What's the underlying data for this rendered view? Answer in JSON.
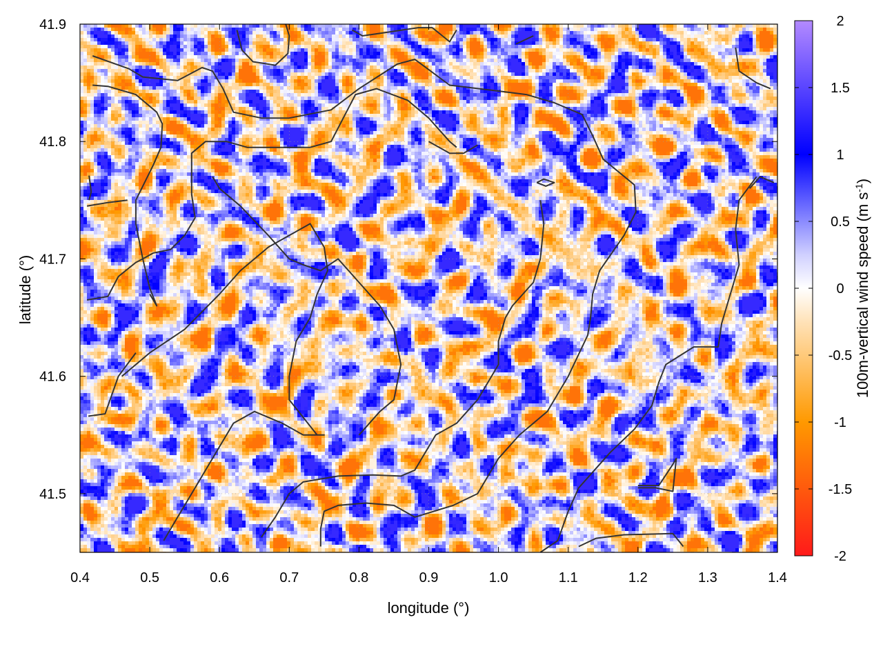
{
  "chart_data": {
    "type": "heatmap",
    "title": "",
    "xlabel": "longitude (°)",
    "ylabel": "latitude (°)",
    "colorbar_label": "100m-vertical wind speed (m s",
    "colorbar_label_sup": "-1",
    "colorbar_label_end": ")",
    "xlim": [
      0.4,
      1.4
    ],
    "ylim": [
      41.45,
      41.9
    ],
    "clim": [
      -2,
      2
    ],
    "x_ticks": [
      0.4,
      0.5,
      0.6,
      0.7,
      0.8,
      0.9,
      1.0,
      1.1,
      1.2,
      1.3,
      1.4
    ],
    "x_tick_labels": [
      "0.4",
      "0.5",
      "0.6",
      "0.7",
      "0.8",
      "0.9",
      "1.0",
      "1.1",
      "1.2",
      "1.3",
      "1.4"
    ],
    "y_ticks": [
      41.5,
      41.6,
      41.7,
      41.8,
      41.9
    ],
    "y_tick_labels": [
      "41.5",
      "41.6",
      "41.7",
      "41.8",
      "41.9"
    ],
    "colorbar_ticks": [
      2,
      1.5,
      1,
      0.5,
      0,
      -0.5,
      -1,
      -1.5,
      -2
    ],
    "colorbar_tick_labels": [
      "2",
      "1.5",
      "1",
      "0.5",
      "0",
      "-0.5",
      "-1",
      "-1.5",
      "-2"
    ],
    "colormap": [
      {
        "value": -2.0,
        "color": "#ff1a1a"
      },
      {
        "value": -1.0,
        "color": "#ff9900"
      },
      {
        "value": -0.25,
        "color": "#ffe2b8"
      },
      {
        "value": 0.0,
        "color": "#ffffff"
      },
      {
        "value": 0.25,
        "color": "#d0d0ff"
      },
      {
        "value": 1.0,
        "color": "#0000ff"
      },
      {
        "value": 2.0,
        "color": "#b38aff"
      }
    ],
    "grid": true,
    "contour_color": "#333333",
    "contours": [
      [
        [
          0.418,
          41.873
        ],
        [
          0.47,
          41.862
        ],
        [
          0.49,
          41.855
        ],
        [
          0.54,
          41.852
        ],
        [
          0.575,
          41.863
        ],
        [
          0.59,
          41.86
        ],
        [
          0.605,
          41.845
        ],
        [
          0.62,
          41.825
        ],
        [
          0.66,
          41.82
        ],
        [
          0.7,
          41.82
        ],
        [
          0.76,
          41.827
        ],
        [
          0.8,
          41.845
        ],
        [
          0.855,
          41.866
        ],
        [
          0.88,
          41.87
        ],
        [
          0.93,
          41.848
        ],
        [
          1.0,
          41.843
        ],
        [
          1.04,
          41.84
        ],
        [
          1.08,
          41.833
        ],
        [
          1.12,
          41.823
        ],
        [
          1.135,
          41.805
        ],
        [
          1.15,
          41.785
        ],
        [
          1.195,
          41.763
        ],
        [
          1.197,
          41.74
        ],
        [
          1.18,
          41.72
        ],
        [
          1.145,
          41.69
        ],
        [
          1.135,
          41.67
        ],
        [
          1.132,
          41.65
        ],
        [
          1.128,
          41.635
        ],
        [
          1.1,
          41.6
        ],
        [
          1.07,
          41.57
        ],
        [
          1.03,
          41.55
        ],
        [
          1.0,
          41.53
        ],
        [
          0.985,
          41.515
        ],
        [
          0.97,
          41.5
        ],
        [
          0.935,
          41.49
        ],
        [
          0.88,
          41.48
        ],
        [
          0.85,
          41.49
        ],
        [
          0.81,
          41.492
        ],
        [
          0.77,
          41.49
        ],
        [
          0.75,
          41.485
        ],
        [
          0.745,
          41.47
        ],
        [
          0.745,
          41.455
        ]
      ],
      [
        [
          0.418,
          41.848
        ],
        [
          0.44,
          41.847
        ],
        [
          0.48,
          41.84
        ],
        [
          0.51,
          41.825
        ],
        [
          0.518,
          41.815
        ],
        [
          0.516,
          41.795
        ],
        [
          0.505,
          41.78
        ],
        [
          0.48,
          41.75
        ],
        [
          0.48,
          41.73
        ],
        [
          0.49,
          41.7
        ],
        [
          0.5,
          41.675
        ],
        [
          0.51,
          41.66
        ],
        [
          0.5,
          41.67
        ]
      ],
      [
        [
          0.413,
          41.771
        ],
        [
          0.416,
          41.757
        ],
        [
          0.413,
          41.75
        ]
      ],
      [
        [
          0.625,
          41.895
        ],
        [
          0.632,
          41.878
        ],
        [
          0.648,
          41.868
        ],
        [
          0.68,
          41.865
        ],
        [
          0.698,
          41.875
        ],
        [
          0.7,
          41.89
        ],
        [
          0.695,
          41.9
        ]
      ],
      [
        [
          0.79,
          41.895
        ],
        [
          0.805,
          41.89
        ],
        [
          0.84,
          41.893
        ],
        [
          0.885,
          41.897
        ],
        [
          0.905,
          41.897
        ],
        [
          0.93,
          41.885
        ],
        [
          0.94,
          41.895
        ]
      ],
      [
        [
          1.025,
          41.883
        ],
        [
          1.05,
          41.89
        ]
      ],
      [
        [
          1.34,
          41.88
        ],
        [
          1.345,
          41.86
        ],
        [
          1.37,
          41.85
        ],
        [
          1.39,
          41.845
        ]
      ],
      [
        [
          1.36,
          41.76
        ],
        [
          1.375,
          41.77
        ],
        [
          1.395,
          41.765
        ]
      ],
      [
        [
          1.37,
          41.77
        ],
        [
          1.345,
          41.75
        ],
        [
          1.34,
          41.725
        ],
        [
          1.345,
          41.695
        ],
        [
          1.33,
          41.665
        ],
        [
          1.32,
          41.645
        ],
        [
          1.315,
          41.625
        ],
        [
          1.28,
          41.625
        ],
        [
          1.24,
          41.61
        ],
        [
          1.23,
          41.595
        ],
        [
          1.22,
          41.575
        ],
        [
          1.195,
          41.555
        ],
        [
          1.16,
          41.535
        ],
        [
          1.115,
          41.505
        ],
        [
          1.1,
          41.485
        ],
        [
          1.085,
          41.46
        ],
        [
          1.06,
          41.45
        ]
      ],
      [
        [
          0.41,
          41.665
        ],
        [
          0.44,
          41.668
        ],
        [
          0.455,
          41.685
        ],
        [
          0.48,
          41.697
        ],
        [
          0.49,
          41.7
        ],
        [
          0.505,
          41.705
        ],
        [
          0.53,
          41.708
        ],
        [
          0.55,
          41.72
        ],
        [
          0.565,
          41.735
        ],
        [
          0.56,
          41.755
        ],
        [
          0.56,
          41.79
        ],
        [
          0.58,
          41.8
        ],
        [
          0.61,
          41.8
        ],
        [
          0.64,
          41.795
        ],
        [
          0.68,
          41.795
        ],
        [
          0.73,
          41.795
        ],
        [
          0.76,
          41.8
        ],
        [
          0.795,
          41.84
        ],
        [
          0.825,
          41.845
        ],
        [
          0.87,
          41.835
        ],
        [
          0.9,
          41.82
        ],
        [
          0.93,
          41.8
        ],
        [
          0.94,
          41.795
        ]
      ],
      [
        [
          0.41,
          41.745
        ],
        [
          0.44,
          41.748
        ],
        [
          0.468,
          41.75
        ]
      ],
      [
        [
          0.59,
          41.77
        ],
        [
          0.6,
          41.76
        ],
        [
          0.63,
          41.745
        ],
        [
          0.67,
          41.72
        ],
        [
          0.7,
          41.7
        ],
        [
          0.72,
          41.695
        ],
        [
          0.745,
          41.69
        ],
        [
          0.77,
          41.7
        ],
        [
          0.8,
          41.68
        ],
        [
          0.83,
          41.66
        ],
        [
          0.85,
          41.64
        ],
        [
          0.86,
          41.61
        ],
        [
          0.85,
          41.58
        ],
        [
          0.83,
          41.57
        ],
        [
          0.8,
          41.55
        ]
      ],
      [
        [
          0.46,
          41.6
        ],
        [
          0.5,
          41.62
        ],
        [
          0.55,
          41.64
        ],
        [
          0.6,
          41.67
        ],
        [
          0.63,
          41.69
        ],
        [
          0.67,
          41.71
        ],
        [
          0.7,
          41.72
        ],
        [
          0.73,
          41.73
        ],
        [
          0.75,
          41.71
        ],
        [
          0.755,
          41.69
        ],
        [
          0.74,
          41.67
        ],
        [
          0.73,
          41.65
        ],
        [
          0.71,
          41.63
        ],
        [
          0.7,
          41.6
        ],
        [
          0.7,
          41.58
        ],
        [
          0.74,
          41.55
        ],
        [
          0.75,
          41.55
        ],
        [
          0.72,
          41.55
        ],
        [
          0.69,
          41.56
        ],
        [
          0.65,
          41.57
        ],
        [
          0.62,
          41.56
        ],
        [
          0.6,
          41.54
        ],
        [
          0.58,
          41.52
        ],
        [
          0.56,
          41.5
        ],
        [
          0.54,
          41.48
        ],
        [
          0.52,
          41.46
        ]
      ],
      [
        [
          0.412,
          41.566
        ],
        [
          0.436,
          41.568
        ],
        [
          0.455,
          41.6
        ],
        [
          0.48,
          41.62
        ]
      ],
      [
        [
          0.66,
          41.463
        ],
        [
          0.68,
          41.48
        ],
        [
          0.7,
          41.5
        ],
        [
          0.72,
          41.51
        ],
        [
          0.77,
          41.515
        ],
        [
          0.82,
          41.516
        ],
        [
          0.86,
          41.515
        ],
        [
          0.88,
          41.52
        ],
        [
          0.91,
          41.55
        ],
        [
          0.94,
          41.56
        ],
        [
          0.97,
          41.58
        ],
        [
          0.99,
          41.6
        ],
        [
          1.0,
          41.61
        ],
        [
          1.0,
          41.63
        ],
        [
          1.01,
          41.65
        ],
        [
          1.02,
          41.66
        ],
        [
          1.05,
          41.68
        ],
        [
          1.06,
          41.7
        ],
        [
          1.065,
          41.73
        ],
        [
          1.06,
          41.75
        ]
      ],
      [
        [
          1.055,
          41.765
        ],
        [
          1.065,
          41.768
        ],
        [
          1.08,
          41.765
        ],
        [
          1.068,
          41.762
        ],
        [
          1.055,
          41.765
        ]
      ],
      [
        [
          0.9,
          41.8
        ],
        [
          0.93,
          41.79
        ],
        [
          0.95,
          41.79
        ],
        [
          0.97,
          41.797
        ]
      ],
      [
        [
          1.2,
          41.505
        ],
        [
          1.225,
          41.505
        ],
        [
          1.25,
          41.502
        ],
        [
          1.255,
          41.53
        ],
        [
          1.25,
          41.525
        ],
        [
          1.23,
          41.507
        ],
        [
          1.2,
          41.507
        ]
      ],
      [
        [
          1.115,
          41.455
        ],
        [
          1.14,
          41.462
        ],
        [
          1.18,
          41.465
        ],
        [
          1.25,
          41.466
        ],
        [
          1.265,
          41.455
        ]
      ]
    ]
  }
}
